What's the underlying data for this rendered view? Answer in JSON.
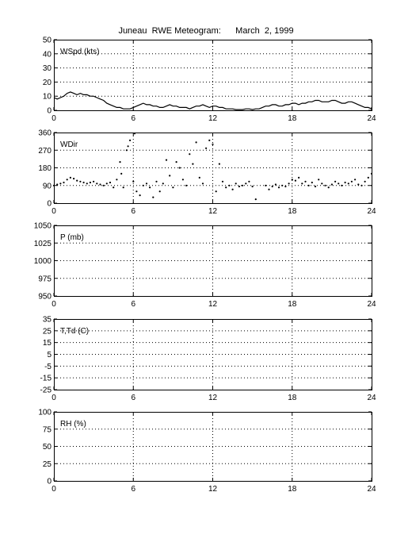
{
  "title": "Juneau  RWE Meteogram:      March  2, 1999",
  "chart_data": [
    {
      "type": "line",
      "panel_label": "WSpd (kts)",
      "xlim": [
        0,
        24
      ],
      "xticks": [
        0,
        6,
        12,
        18,
        24
      ],
      "ylim": [
        0,
        50
      ],
      "yticks": [
        0,
        10,
        20,
        30,
        40,
        50
      ],
      "grid": true,
      "series": [
        {
          "x": [
            0,
            0.25,
            0.5,
            0.75,
            1,
            1.25,
            1.5,
            1.75,
            2,
            2.25,
            2.5,
            2.75,
            3,
            3.25,
            3.5,
            3.75,
            4,
            4.25,
            4.5,
            4.75,
            5,
            5.25,
            5.5,
            5.75,
            6,
            6.25,
            6.5,
            6.75,
            7,
            7.25,
            7.5,
            7.75,
            8,
            8.25,
            8.5,
            8.75,
            9,
            9.25,
            9.5,
            9.75,
            10,
            10.25,
            10.5,
            10.75,
            11,
            11.25,
            11.5,
            11.75,
            12,
            12.25,
            12.5,
            12.75,
            13,
            13.25,
            13.5,
            13.75,
            14,
            14.25,
            14.5,
            14.75,
            15,
            15.25,
            15.5,
            15.75,
            16,
            16.25,
            16.5,
            16.75,
            17,
            17.25,
            17.5,
            17.75,
            18,
            18.25,
            18.5,
            18.75,
            19,
            19.25,
            19.5,
            19.75,
            20,
            20.25,
            20.5,
            20.75,
            21,
            21.25,
            21.5,
            21.75,
            22,
            22.25,
            22.5,
            22.75,
            23,
            23.25,
            23.5,
            23.75,
            24
          ],
          "y": [
            9,
            8,
            9,
            10,
            12,
            13,
            12,
            11,
            12,
            11,
            11,
            10,
            10,
            9,
            8,
            7,
            5,
            4,
            3,
            2,
            2,
            1,
            1,
            1,
            2,
            3,
            4,
            5,
            4,
            4,
            3,
            3,
            2,
            2,
            3,
            4,
            3,
            3,
            2,
            2,
            2,
            1,
            2,
            3,
            3,
            4,
            3,
            2,
            3,
            3,
            2,
            2,
            1,
            1,
            1,
            0.5,
            0.5,
            0.5,
            1,
            1,
            0.5,
            1,
            1,
            2,
            3,
            3,
            4,
            4,
            3,
            3,
            4,
            4,
            5,
            5,
            4,
            5,
            5,
            6,
            6,
            7,
            7,
            6,
            6,
            6,
            7,
            7,
            6,
            5,
            5,
            6,
            6,
            5,
            4,
            3,
            2,
            2,
            1
          ]
        }
      ]
    },
    {
      "type": "scatter",
      "panel_label": "WDir",
      "xlim": [
        0,
        24
      ],
      "xticks": [
        0,
        6,
        12,
        18,
        24
      ],
      "ylim": [
        0,
        360
      ],
      "yticks": [
        0,
        90,
        180,
        270,
        360
      ],
      "grid": true,
      "series": [
        {
          "x": [
            0,
            0.25,
            0.5,
            0.75,
            1,
            1.25,
            1.5,
            1.75,
            2,
            2.25,
            2.5,
            2.75,
            3,
            3.25,
            3.5,
            3.75,
            4,
            4.25,
            4.5,
            4.75,
            5,
            5.1,
            5.25,
            5.5,
            5.6,
            5.75,
            6,
            6.1,
            6.25,
            6.5,
            6.75,
            7,
            7.25,
            7.5,
            7.75,
            8,
            8.25,
            8.5,
            8.75,
            9,
            9.25,
            9.5,
            9.75,
            10,
            10.25,
            10.5,
            10.75,
            11,
            11.25,
            11.5,
            11.75,
            12,
            12.25,
            12.5,
            12.75,
            13,
            13.25,
            13.5,
            13.75,
            14,
            14.25,
            14.5,
            14.75,
            15,
            15.25,
            16,
            16.25,
            16.5,
            16.75,
            17,
            17.25,
            17.5,
            17.75,
            18,
            18.25,
            18.5,
            18.75,
            19,
            19.25,
            19.5,
            19.75,
            20,
            20.25,
            20.5,
            20.75,
            21,
            21.25,
            21.5,
            21.75,
            22,
            22.25,
            22.5,
            22.75,
            23,
            23.25,
            23.5,
            23.75,
            24
          ],
          "y": [
            90,
            95,
            100,
            105,
            120,
            130,
            125,
            115,
            110,
            105,
            100,
            105,
            110,
            100,
            95,
            90,
            100,
            105,
            80,
            120,
            210,
            150,
            80,
            270,
            290,
            320,
            110,
            355,
            60,
            40,
            90,
            100,
            80,
            30,
            110,
            60,
            100,
            220,
            140,
            80,
            210,
            180,
            120,
            90,
            250,
            200,
            310,
            130,
            100,
            280,
            320,
            300,
            60,
            200,
            110,
            80,
            90,
            70,
            100,
            85,
            90,
            100,
            110,
            85,
            20,
            90,
            70,
            85,
            95,
            80,
            90,
            85,
            100,
            120,
            115,
            130,
            100,
            110,
            90,
            105,
            85,
            120,
            100,
            90,
            80,
            95,
            110,
            100,
            90,
            105,
            100,
            110,
            120,
            95,
            90,
            110,
            130,
            150
          ]
        }
      ]
    },
    {
      "type": "line",
      "panel_label": "P (mb)",
      "xlim": [
        0,
        24
      ],
      "xticks": [
        0,
        6,
        12,
        18,
        24
      ],
      "ylim": [
        950,
        1050
      ],
      "yticks": [
        950,
        975,
        1000,
        1025,
        1050
      ],
      "grid": true,
      "series": []
    },
    {
      "type": "line",
      "panel_label": "T,Td (C)",
      "xlim": [
        0,
        24
      ],
      "xticks": [
        0,
        6,
        12,
        18,
        24
      ],
      "ylim": [
        -25,
        35
      ],
      "yticks": [
        -25,
        -15,
        -5,
        5,
        15,
        25,
        35
      ],
      "grid": true,
      "series": []
    },
    {
      "type": "line",
      "panel_label": "RH (%)",
      "xlim": [
        0,
        24
      ],
      "xticks": [
        0,
        6,
        12,
        18,
        24
      ],
      "ylim": [
        0,
        100
      ],
      "yticks": [
        0,
        25,
        50,
        75,
        100
      ],
      "grid": true,
      "series": []
    }
  ]
}
